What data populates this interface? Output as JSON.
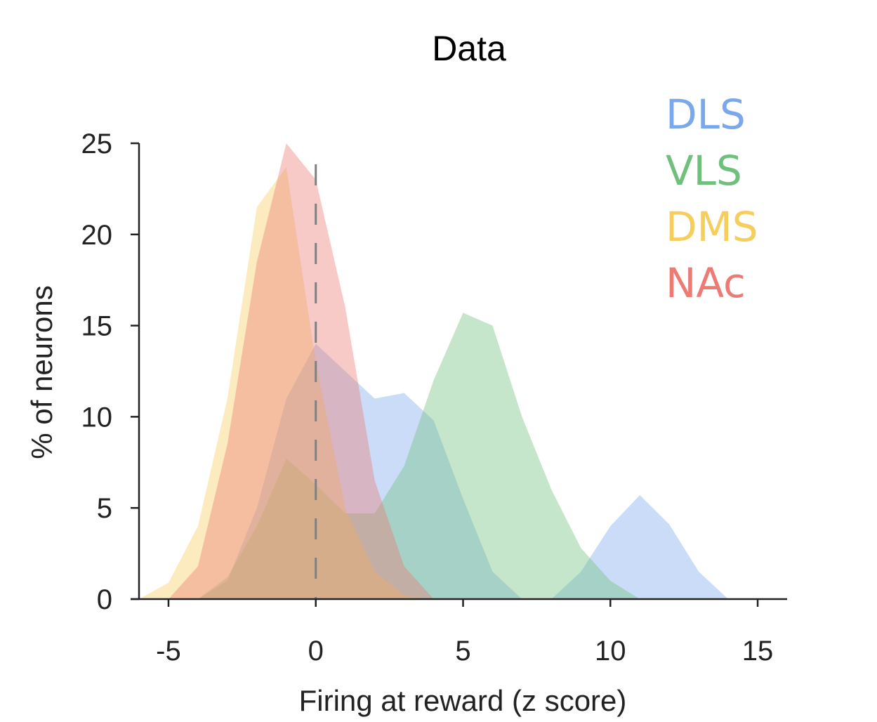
{
  "chart_data": {
    "type": "area",
    "title": "Data",
    "xlabel": "Firing at reward (z score)",
    "ylabel": "% of neurons",
    "xlim": [
      -6,
      16
    ],
    "ylim": [
      0,
      25
    ],
    "xticks": [
      -5,
      0,
      5,
      10,
      15
    ],
    "yticks": [
      0,
      5,
      10,
      15,
      20,
      25
    ],
    "vline": {
      "x": 0,
      "style": "dashed",
      "color": "#808080"
    },
    "legend_position": "top-right",
    "series": [
      {
        "name": "DLS",
        "color": "#7BA7EC",
        "x": [
          -4,
          -3,
          -2,
          -1,
          0,
          1,
          2,
          3,
          4,
          5,
          6,
          7,
          8,
          9,
          10,
          11,
          12,
          13,
          14
        ],
        "values": [
          0,
          1,
          5,
          11,
          14,
          12.5,
          11,
          11.3,
          9.8,
          5.5,
          1.5,
          0,
          0,
          1.5,
          4,
          5.7,
          4.1,
          1.5,
          0
        ]
      },
      {
        "name": "VLS",
        "color": "#6EC07C",
        "x": [
          -4,
          -3,
          -2,
          -1,
          0,
          1,
          2,
          3,
          4,
          5,
          6,
          7,
          8,
          9,
          10,
          11
        ],
        "values": [
          0,
          1.2,
          4,
          7.7,
          6.3,
          4.7,
          4.7,
          7.3,
          12,
          15.7,
          15,
          10,
          6,
          2.8,
          1,
          0
        ]
      },
      {
        "name": "DMS",
        "color": "#F5CE5D",
        "x": [
          -6,
          -5,
          -4,
          -3,
          -2,
          -1,
          0,
          1,
          2,
          3,
          4
        ],
        "values": [
          0,
          0.9,
          4,
          11,
          21.5,
          23.7,
          13,
          5,
          1.5,
          0.2,
          0
        ]
      },
      {
        "name": "NAc",
        "color": "#EE7B73",
        "x": [
          -5,
          -4,
          -3,
          -2,
          -1,
          0,
          1,
          2,
          3,
          4
        ],
        "values": [
          0,
          1.8,
          8.5,
          18.5,
          25,
          23,
          16,
          6.5,
          1.8,
          0
        ]
      }
    ]
  }
}
